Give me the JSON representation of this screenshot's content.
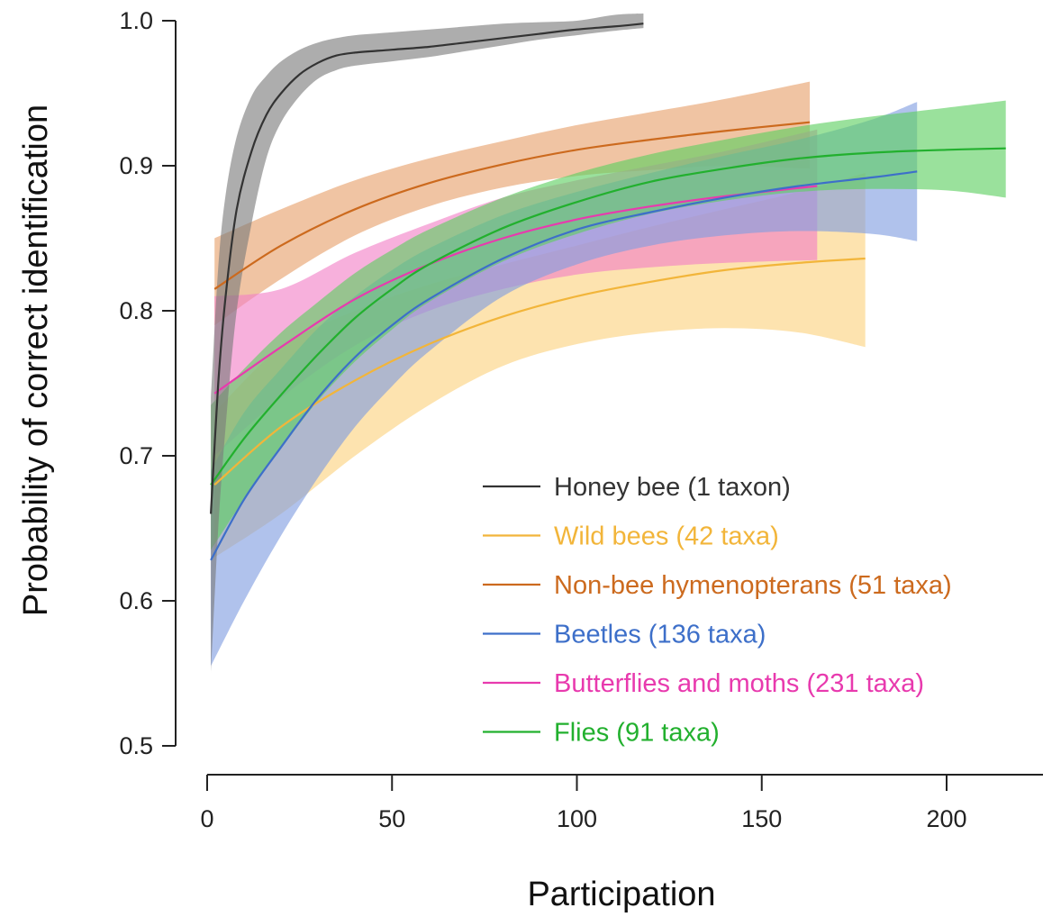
{
  "chart_data": {
    "type": "line",
    "xlabel": "Participation",
    "ylabel": "Probability of correct identification",
    "xlim": [
      0,
      225
    ],
    "ylim": [
      0.5,
      1.0
    ],
    "x_ticks": [
      "0",
      "50",
      "100",
      "150",
      "200"
    ],
    "x_tick_values": [
      0,
      50,
      100,
      150,
      200
    ],
    "y_ticks": [
      "0.5",
      "0.6",
      "0.7",
      "0.8",
      "0.9",
      "1.0"
    ],
    "y_tick_values": [
      0.5,
      0.6,
      0.7,
      0.8,
      0.9,
      1.0
    ],
    "legend_position": "bottom-right",
    "grid": false,
    "series": [
      {
        "name": "Honey bee (1 taxon)",
        "color": "#333333",
        "band_color": "#7a7a7a",
        "x": [
          1,
          3,
          5,
          8,
          12,
          16,
          20,
          25,
          30,
          35,
          40,
          50,
          60,
          70,
          80,
          90,
          100,
          110,
          118
        ],
        "y": [
          0.66,
          0.75,
          0.81,
          0.87,
          0.91,
          0.935,
          0.95,
          0.963,
          0.971,
          0.976,
          0.978,
          0.98,
          0.982,
          0.985,
          0.988,
          0.991,
          0.994,
          0.996,
          0.998
        ],
        "lower": [
          0.55,
          0.65,
          0.72,
          0.8,
          0.86,
          0.905,
          0.93,
          0.948,
          0.96,
          0.966,
          0.969,
          0.972,
          0.975,
          0.979,
          0.983,
          0.987,
          0.99,
          0.993,
          0.995
        ],
        "upper": [
          0.74,
          0.83,
          0.88,
          0.92,
          0.948,
          0.962,
          0.972,
          0.98,
          0.985,
          0.988,
          0.99,
          0.992,
          0.994,
          0.996,
          0.998,
          0.999,
          1.0,
          1.004,
          1.005
        ]
      },
      {
        "name": "Wild bees (42 taxa)",
        "color": "#f2b53a",
        "band_color": "#fbd27e",
        "x": [
          2,
          20,
          40,
          60,
          80,
          100,
          120,
          140,
          160,
          178
        ],
        "y": [
          0.68,
          0.72,
          0.752,
          0.777,
          0.796,
          0.81,
          0.82,
          0.828,
          0.833,
          0.836
        ],
        "lower": [
          0.63,
          0.66,
          0.7,
          0.735,
          0.762,
          0.777,
          0.785,
          0.788,
          0.785,
          0.775
        ],
        "upper": [
          0.73,
          0.775,
          0.8,
          0.818,
          0.832,
          0.845,
          0.858,
          0.87,
          0.882,
          0.895
        ]
      },
      {
        "name": "Non-bee hymenopterans (51 taxa)",
        "color": "#cc6a1e",
        "band_color": "#e6a06a",
        "x": [
          2,
          20,
          40,
          60,
          80,
          100,
          120,
          140,
          163
        ],
        "y": [
          0.815,
          0.845,
          0.87,
          0.888,
          0.901,
          0.911,
          0.918,
          0.924,
          0.93
        ],
        "lower": [
          0.79,
          0.822,
          0.852,
          0.872,
          0.885,
          0.893,
          0.897,
          0.9,
          0.898
        ],
        "upper": [
          0.85,
          0.87,
          0.89,
          0.905,
          0.917,
          0.928,
          0.937,
          0.946,
          0.958
        ]
      },
      {
        "name": "Beetles (136 taxa)",
        "color": "#3d6fc9",
        "band_color": "#7f9de0",
        "x": [
          1,
          10,
          20,
          30,
          40,
          50,
          60,
          80,
          100,
          120,
          140,
          160,
          180,
          192
        ],
        "y": [
          0.628,
          0.67,
          0.706,
          0.74,
          0.768,
          0.79,
          0.808,
          0.836,
          0.856,
          0.868,
          0.878,
          0.886,
          0.892,
          0.896
        ],
        "lower": [
          0.555,
          0.6,
          0.645,
          0.685,
          0.72,
          0.748,
          0.772,
          0.81,
          0.832,
          0.845,
          0.852,
          0.855,
          0.853,
          0.848
        ],
        "upper": [
          0.69,
          0.73,
          0.76,
          0.788,
          0.81,
          0.828,
          0.843,
          0.866,
          0.882,
          0.895,
          0.907,
          0.918,
          0.932,
          0.944
        ]
      },
      {
        "name": "Butterflies and moths (231 taxa)",
        "color": "#e83aae",
        "band_color": "#f27fc7",
        "x": [
          2,
          20,
          40,
          60,
          80,
          100,
          120,
          140,
          165
        ],
        "y": [
          0.743,
          0.775,
          0.808,
          0.832,
          0.85,
          0.863,
          0.872,
          0.879,
          0.886
        ],
        "lower": [
          0.7,
          0.74,
          0.776,
          0.8,
          0.815,
          0.825,
          0.83,
          0.833,
          0.835
        ],
        "upper": [
          0.81,
          0.815,
          0.84,
          0.86,
          0.878,
          0.89,
          0.9,
          0.91,
          0.925
        ]
      },
      {
        "name": "Flies (91 taxa)",
        "color": "#22b02e",
        "band_color": "#5ccf60",
        "x": [
          1,
          10,
          20,
          30,
          40,
          50,
          60,
          80,
          100,
          120,
          140,
          160,
          180,
          200,
          216
        ],
        "y": [
          0.68,
          0.712,
          0.742,
          0.77,
          0.795,
          0.815,
          0.832,
          0.857,
          0.875,
          0.889,
          0.898,
          0.905,
          0.909,
          0.911,
          0.912
        ],
        "lower": [
          0.635,
          0.67,
          0.705,
          0.738,
          0.765,
          0.787,
          0.806,
          0.834,
          0.853,
          0.867,
          0.876,
          0.882,
          0.884,
          0.883,
          0.878
        ],
        "upper": [
          0.735,
          0.76,
          0.785,
          0.806,
          0.826,
          0.842,
          0.856,
          0.878,
          0.895,
          0.908,
          0.918,
          0.927,
          0.934,
          0.94,
          0.945
        ]
      }
    ]
  }
}
